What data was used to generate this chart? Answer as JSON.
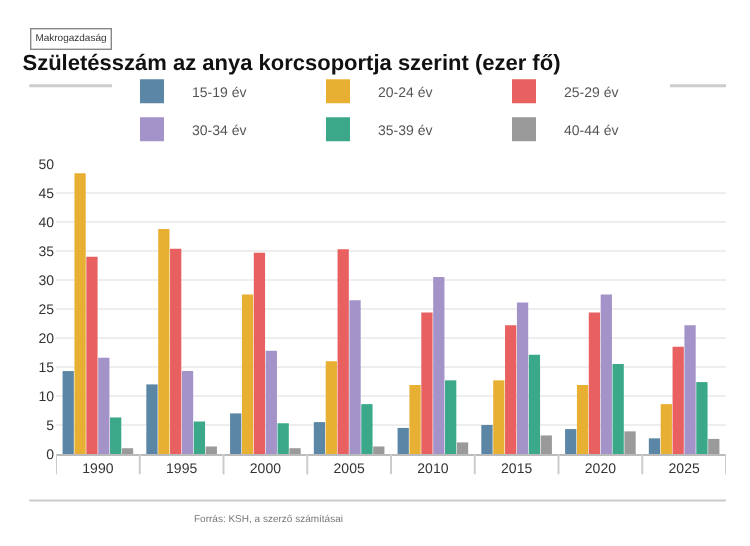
{
  "chart_data": {
    "type": "bar",
    "title": "Születésszám az anya korcsoportja szerint (ezer fő)",
    "categories": [
      "1990",
      "1995",
      "2000",
      "2005",
      "2010",
      "2015",
      "2020",
      "2025"
    ],
    "series": [
      {
        "name": "15-19 év",
        "color": "#5b86a5",
        "values": [
          14.3,
          12.0,
          7.0,
          5.5,
          4.5,
          5.0,
          4.3,
          2.7
        ]
      },
      {
        "name": "20-24 év",
        "color": "#e8b032",
        "values": [
          48.4,
          38.8,
          27.5,
          16.0,
          11.9,
          12.7,
          11.9,
          8.6
        ]
      },
      {
        "name": "25-29 év",
        "color": "#e8605f",
        "values": [
          34.0,
          35.4,
          34.7,
          35.3,
          24.4,
          22.2,
          24.4,
          18.5
        ]
      },
      {
        "name": "30-34 év",
        "color": "#a393c8",
        "values": [
          16.6,
          14.3,
          17.8,
          26.5,
          30.5,
          26.1,
          27.5,
          22.2
        ]
      },
      {
        "name": "35-39 év",
        "color": "#3aa889",
        "values": [
          6.3,
          5.6,
          5.3,
          8.6,
          12.7,
          17.1,
          15.5,
          12.4
        ]
      },
      {
        "name": "40-44 év",
        "color": "#9a9a9a",
        "values": [
          1.0,
          1.3,
          1.0,
          1.3,
          2.0,
          3.2,
          3.9,
          2.6
        ]
      }
    ],
    "ylim": [
      0,
      50
    ],
    "yticks": [
      0,
      5,
      10,
      15,
      20,
      25,
      30,
      35,
      40,
      45,
      50
    ],
    "grid": "y",
    "legend": "top",
    "annotations": [
      "Makrogazdaság",
      "Forrás: KSH, a szerző számításai"
    ]
  }
}
